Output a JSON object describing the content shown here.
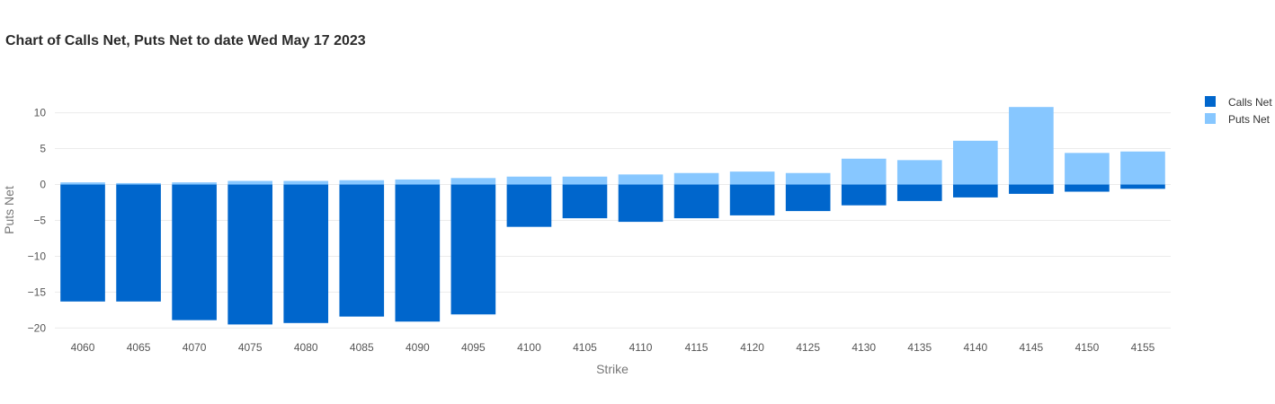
{
  "chart_data": {
    "type": "bar",
    "stacking": "relative",
    "title": "Chart of Calls Net, Puts Net to date Wed May 17 2023",
    "xlabel": "Strike",
    "ylabel": "Puts Net",
    "categories": [
      "4060",
      "4065",
      "4070",
      "4075",
      "4080",
      "4085",
      "4090",
      "4095",
      "4100",
      "4105",
      "4110",
      "4115",
      "4120",
      "4125",
      "4130",
      "4135",
      "4140",
      "4145",
      "4150",
      "4155"
    ],
    "series": [
      {
        "name": "Calls Net",
        "color": "#0066CC",
        "values": [
          -16.3,
          -16.3,
          -18.9,
          -19.5,
          -19.3,
          -18.4,
          -19.1,
          -18.1,
          -5.9,
          -4.7,
          -5.2,
          -4.7,
          -4.3,
          -3.7,
          -2.9,
          -2.3,
          -1.8,
          -1.3,
          -1.0,
          -0.6
        ]
      },
      {
        "name": "Puts Net",
        "color": "#87C7FF",
        "values": [
          0.3,
          0.2,
          0.3,
          0.5,
          0.5,
          0.6,
          0.7,
          0.9,
          1.1,
          1.1,
          1.4,
          1.6,
          1.8,
          1.6,
          3.6,
          3.4,
          6.1,
          10.8,
          4.4,
          4.6
        ]
      }
    ],
    "yticks": [
      10,
      5,
      0,
      -5,
      -10,
      -15,
      -20
    ],
    "ylim": [
      -21.2,
      13.2
    ],
    "grid": true,
    "legend_position": "top-right"
  }
}
